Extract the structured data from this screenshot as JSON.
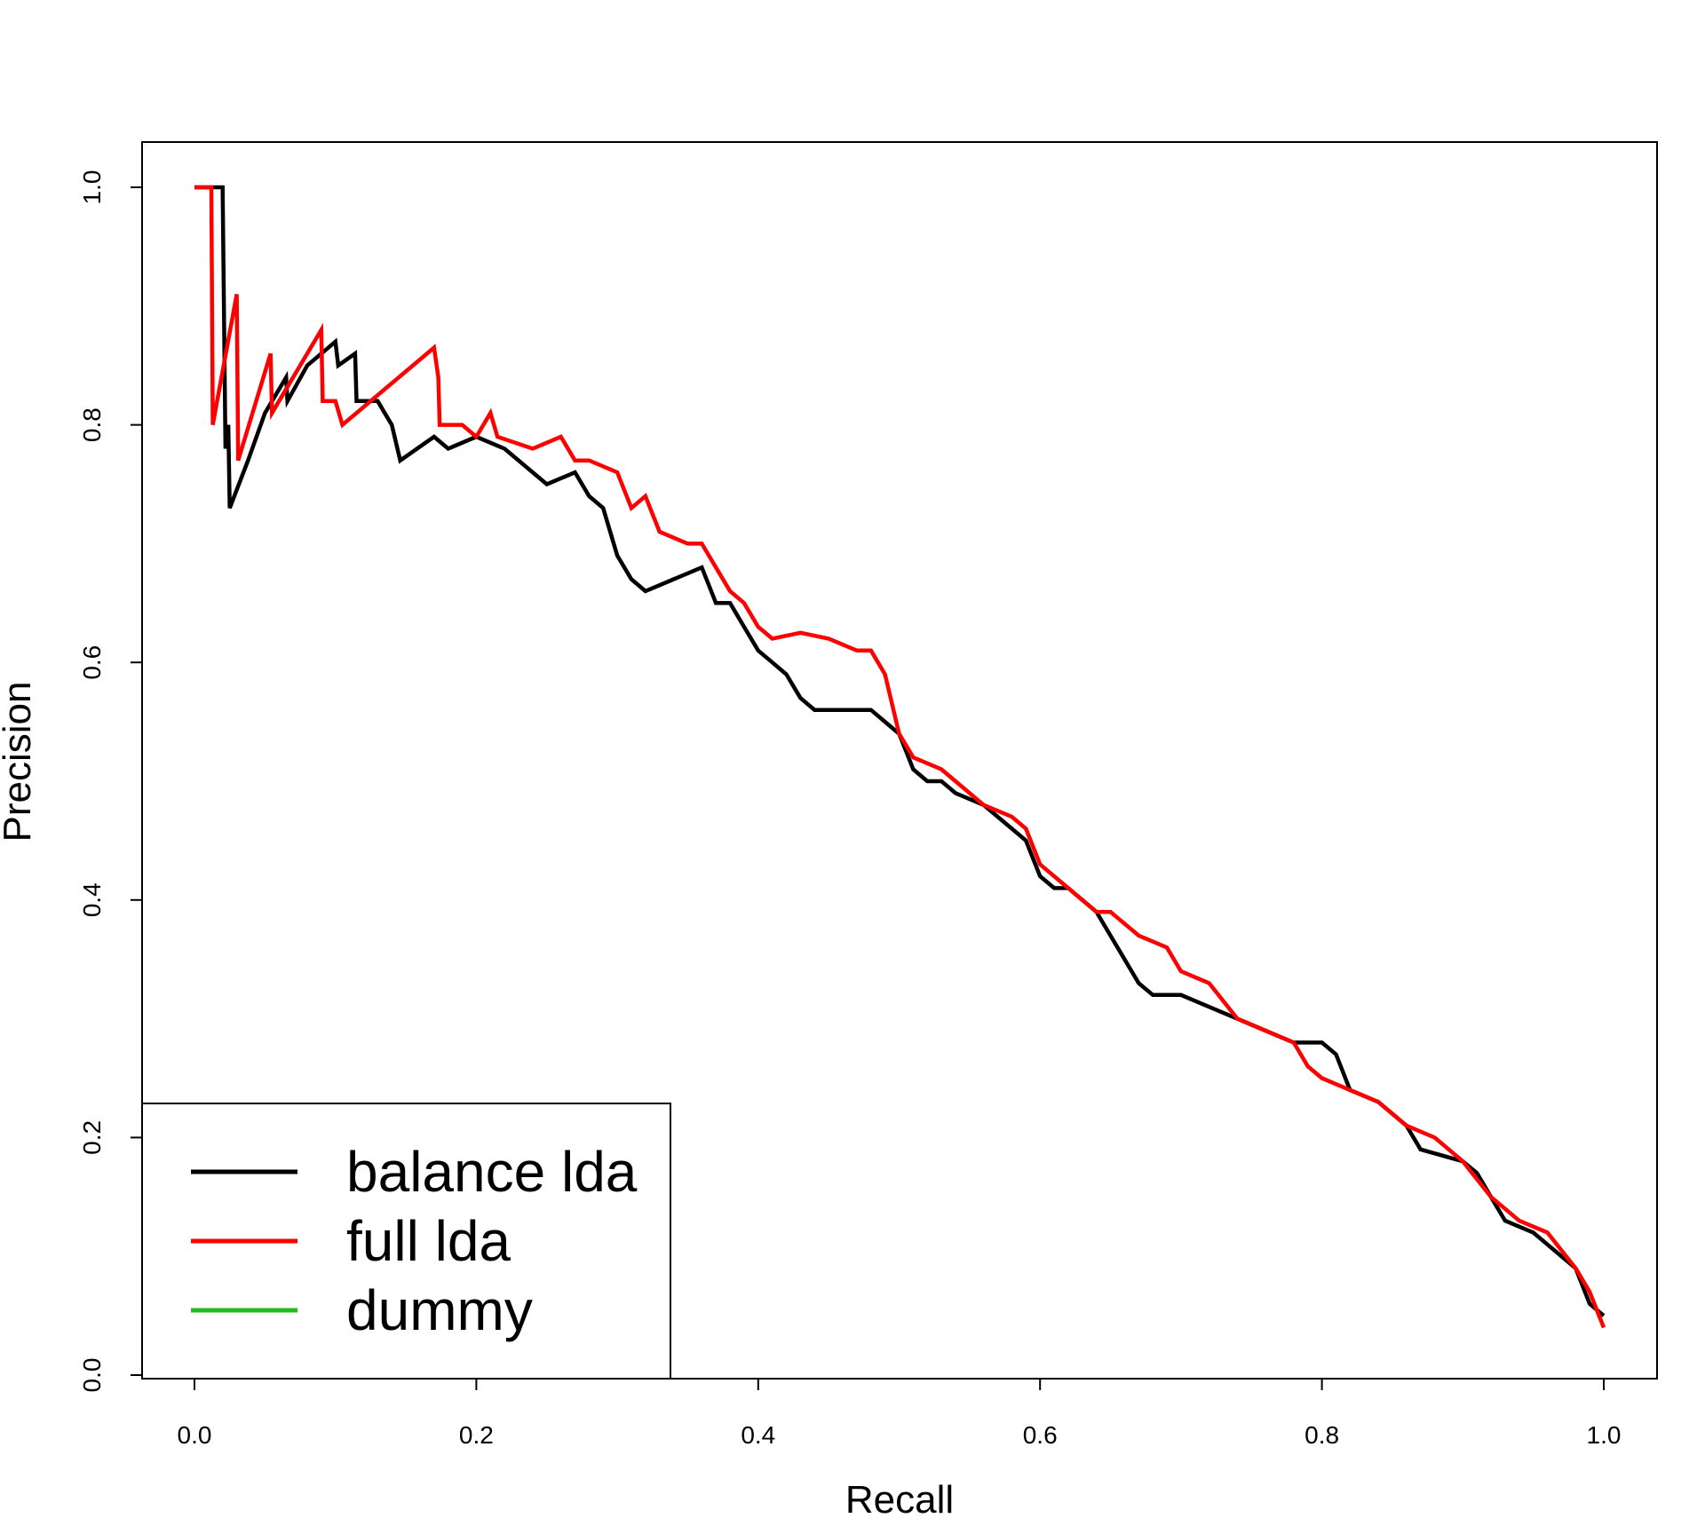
{
  "colors": {
    "background": "#ffffff",
    "axis": "#000000",
    "balance_lda": "#000000",
    "full_lda": "#ff0000",
    "dummy": "#22bb22"
  },
  "chart_data": {
    "type": "line",
    "title": "",
    "xlabel": "Recall",
    "ylabel": "Precision",
    "xlim": [
      0.0,
      1.0
    ],
    "ylim": [
      0.0,
      1.0
    ],
    "x_ticks": [
      "0.0",
      "0.2",
      "0.4",
      "0.6",
      "0.8",
      "1.0"
    ],
    "y_ticks": [
      "0.0",
      "0.2",
      "0.4",
      "0.6",
      "0.8",
      "1.0"
    ],
    "grid": false,
    "legend_position": "bottom-left",
    "series": [
      {
        "name": "balance lda",
        "color": "#000000",
        "points": [
          [
            0.0,
            1.0
          ],
          [
            0.02,
            1.0
          ],
          [
            0.022,
            0.78
          ],
          [
            0.024,
            0.8
          ],
          [
            0.025,
            0.73
          ],
          [
            0.038,
            0.77
          ],
          [
            0.05,
            0.81
          ],
          [
            0.065,
            0.84
          ],
          [
            0.066,
            0.82
          ],
          [
            0.08,
            0.85
          ],
          [
            0.1,
            0.87
          ],
          [
            0.102,
            0.85
          ],
          [
            0.114,
            0.86
          ],
          [
            0.115,
            0.82
          ],
          [
            0.13,
            0.82
          ],
          [
            0.135,
            0.81
          ],
          [
            0.14,
            0.8
          ],
          [
            0.146,
            0.77
          ],
          [
            0.17,
            0.79
          ],
          [
            0.18,
            0.78
          ],
          [
            0.2,
            0.79
          ],
          [
            0.22,
            0.78
          ],
          [
            0.24,
            0.76
          ],
          [
            0.25,
            0.75
          ],
          [
            0.27,
            0.76
          ],
          [
            0.28,
            0.74
          ],
          [
            0.29,
            0.73
          ],
          [
            0.3,
            0.69
          ],
          [
            0.31,
            0.67
          ],
          [
            0.32,
            0.66
          ],
          [
            0.34,
            0.67
          ],
          [
            0.36,
            0.68
          ],
          [
            0.37,
            0.65
          ],
          [
            0.38,
            0.65
          ],
          [
            0.39,
            0.63
          ],
          [
            0.4,
            0.61
          ],
          [
            0.41,
            0.6
          ],
          [
            0.42,
            0.59
          ],
          [
            0.43,
            0.57
          ],
          [
            0.44,
            0.56
          ],
          [
            0.46,
            0.56
          ],
          [
            0.48,
            0.56
          ],
          [
            0.49,
            0.55
          ],
          [
            0.5,
            0.54
          ],
          [
            0.51,
            0.51
          ],
          [
            0.52,
            0.5
          ],
          [
            0.53,
            0.5
          ],
          [
            0.54,
            0.49
          ],
          [
            0.56,
            0.48
          ],
          [
            0.58,
            0.46
          ],
          [
            0.59,
            0.45
          ],
          [
            0.6,
            0.42
          ],
          [
            0.61,
            0.41
          ],
          [
            0.62,
            0.41
          ],
          [
            0.64,
            0.39
          ],
          [
            0.65,
            0.37
          ],
          [
            0.66,
            0.35
          ],
          [
            0.67,
            0.33
          ],
          [
            0.68,
            0.32
          ],
          [
            0.7,
            0.32
          ],
          [
            0.72,
            0.31
          ],
          [
            0.74,
            0.3
          ],
          [
            0.76,
            0.29
          ],
          [
            0.78,
            0.28
          ],
          [
            0.8,
            0.28
          ],
          [
            0.81,
            0.27
          ],
          [
            0.82,
            0.24
          ],
          [
            0.84,
            0.23
          ],
          [
            0.86,
            0.21
          ],
          [
            0.87,
            0.19
          ],
          [
            0.9,
            0.18
          ],
          [
            0.91,
            0.17
          ],
          [
            0.92,
            0.15
          ],
          [
            0.93,
            0.13
          ],
          [
            0.95,
            0.12
          ],
          [
            0.96,
            0.11
          ],
          [
            0.98,
            0.09
          ],
          [
            0.99,
            0.06
          ],
          [
            1.0,
            0.05
          ]
        ]
      },
      {
        "name": "full lda",
        "color": "#ff0000",
        "points": [
          [
            0.0,
            1.0
          ],
          [
            0.012,
            1.0
          ],
          [
            0.013,
            0.8
          ],
          [
            0.03,
            0.91
          ],
          [
            0.031,
            0.77
          ],
          [
            0.054,
            0.86
          ],
          [
            0.055,
            0.81
          ],
          [
            0.09,
            0.88
          ],
          [
            0.091,
            0.82
          ],
          [
            0.1,
            0.82
          ],
          [
            0.105,
            0.8
          ],
          [
            0.17,
            0.865
          ],
          [
            0.173,
            0.84
          ],
          [
            0.174,
            0.8
          ],
          [
            0.19,
            0.8
          ],
          [
            0.2,
            0.79
          ],
          [
            0.21,
            0.81
          ],
          [
            0.215,
            0.79
          ],
          [
            0.24,
            0.78
          ],
          [
            0.26,
            0.79
          ],
          [
            0.27,
            0.77
          ],
          [
            0.28,
            0.77
          ],
          [
            0.3,
            0.76
          ],
          [
            0.31,
            0.73
          ],
          [
            0.32,
            0.74
          ],
          [
            0.33,
            0.71
          ],
          [
            0.35,
            0.7
          ],
          [
            0.36,
            0.7
          ],
          [
            0.37,
            0.68
          ],
          [
            0.38,
            0.66
          ],
          [
            0.39,
            0.65
          ],
          [
            0.4,
            0.63
          ],
          [
            0.41,
            0.62
          ],
          [
            0.43,
            0.625
          ],
          [
            0.45,
            0.62
          ],
          [
            0.47,
            0.61
          ],
          [
            0.48,
            0.61
          ],
          [
            0.49,
            0.59
          ],
          [
            0.5,
            0.54
          ],
          [
            0.51,
            0.52
          ],
          [
            0.53,
            0.51
          ],
          [
            0.54,
            0.5
          ],
          [
            0.56,
            0.48
          ],
          [
            0.58,
            0.47
          ],
          [
            0.59,
            0.46
          ],
          [
            0.6,
            0.43
          ],
          [
            0.62,
            0.41
          ],
          [
            0.64,
            0.39
          ],
          [
            0.65,
            0.39
          ],
          [
            0.67,
            0.37
          ],
          [
            0.69,
            0.36
          ],
          [
            0.7,
            0.34
          ],
          [
            0.72,
            0.33
          ],
          [
            0.74,
            0.3
          ],
          [
            0.76,
            0.29
          ],
          [
            0.78,
            0.28
          ],
          [
            0.79,
            0.26
          ],
          [
            0.8,
            0.25
          ],
          [
            0.82,
            0.24
          ],
          [
            0.84,
            0.23
          ],
          [
            0.86,
            0.21
          ],
          [
            0.88,
            0.2
          ],
          [
            0.9,
            0.18
          ],
          [
            0.92,
            0.15
          ],
          [
            0.94,
            0.13
          ],
          [
            0.96,
            0.12
          ],
          [
            0.98,
            0.09
          ],
          [
            0.99,
            0.07
          ],
          [
            1.0,
            0.04
          ]
        ]
      },
      {
        "name": "dummy",
        "color": "#22bb22",
        "points": []
      }
    ]
  }
}
